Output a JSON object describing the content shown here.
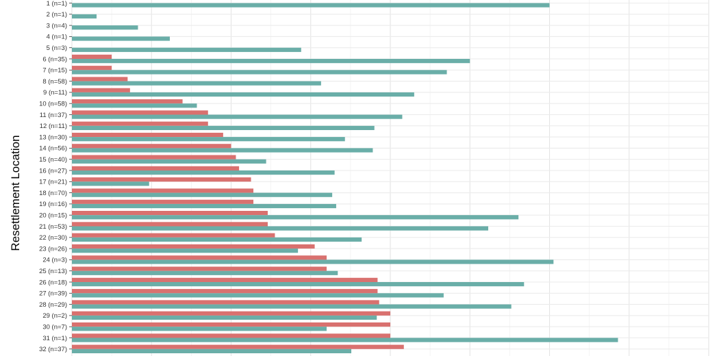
{
  "chart_data": {
    "type": "bar",
    "orientation": "horizontal",
    "ylabel": "Resettlement Location",
    "xlabel": "",
    "categories": [
      "1 (n=1)",
      "2 (n=1)",
      "3 (n=4)",
      "4 (n=1)",
      "5 (n=3)",
      "6 (n=35)",
      "7 (n=15)",
      "8 (n=58)",
      "9 (n=11)",
      "10 (n=58)",
      "11 (n=37)",
      "12 (n=11)",
      "13 (n=30)",
      "14 (n=56)",
      "15 (n=40)",
      "16 (n=27)",
      "17 (n=21)",
      "18 (n=70)",
      "19 (n=16)",
      "20 (n=15)",
      "21 (n=53)",
      "22 (n=30)",
      "23 (n=26)",
      "24 (n=3)",
      "25 (n=13)",
      "26 (n=18)",
      "27 (n=39)",
      "28 (n=29)",
      "29 (n=2)",
      "30 (n=7)",
      "31 (n=1)",
      "32 (n=37)"
    ],
    "xlim": [
      0,
      0.8
    ],
    "grid": true,
    "series": [
      {
        "color": "#d9716f",
        "values": [
          null,
          null,
          null,
          null,
          null,
          0.05,
          0.05,
          0.07,
          0.073,
          0.139,
          0.171,
          0.171,
          0.19,
          0.2,
          0.206,
          0.21,
          0.225,
          0.228,
          0.228,
          0.246,
          0.246,
          0.255,
          0.305,
          0.32,
          0.32,
          0.384,
          0.384,
          0.386,
          0.4,
          0.4,
          0.4,
          0.417
        ]
      },
      {
        "color": "#6aaea8",
        "values": [
          0.6,
          0.031,
          0.083,
          0.123,
          0.288,
          0.5,
          0.471,
          0.313,
          0.43,
          0.157,
          0.415,
          0.38,
          0.343,
          0.378,
          0.244,
          0.33,
          0.097,
          0.327,
          0.332,
          0.561,
          0.523,
          0.364,
          0.284,
          0.605,
          0.334,
          0.568,
          0.467,
          0.552,
          0.383,
          0.32,
          0.686,
          0.351
        ]
      }
    ]
  }
}
